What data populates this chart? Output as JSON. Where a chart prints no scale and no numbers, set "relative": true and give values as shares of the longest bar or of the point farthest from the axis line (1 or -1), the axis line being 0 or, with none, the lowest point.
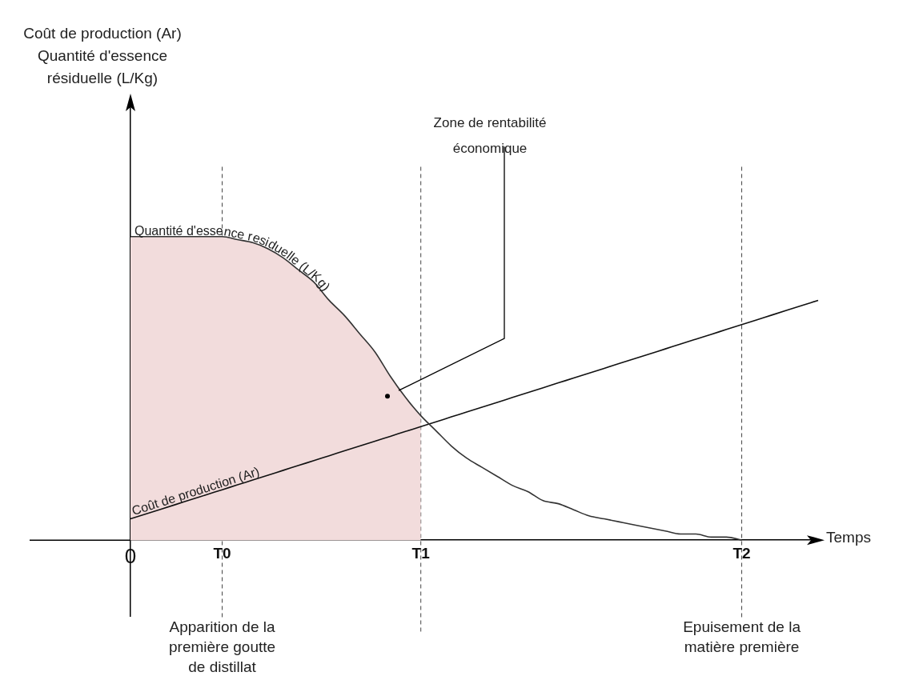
{
  "chart_data": {
    "type": "line",
    "relative": true,
    "xlabel": "Temps",
    "categories": [
      "0",
      null,
      null,
      null,
      null,
      null,
      "T0",
      null,
      null,
      null,
      null,
      null,
      null,
      null,
      null,
      null,
      null,
      null,
      null,
      "T1",
      null,
      null,
      null,
      null,
      null,
      null,
      null,
      null,
      null,
      null,
      null,
      null,
      null,
      null,
      null,
      null,
      null,
      null,
      null,
      null,
      "T2",
      null,
      null,
      null,
      null,
      null
    ],
    "tick_labels": "x",
    "legend": false,
    "grid": false,
    "marker": "none",
    "line_style": "solid",
    "series": [
      {
        "type": "area",
        "color": "#f2dcdc",
        "values": [
          1,
          1,
          1,
          1,
          1,
          1,
          1,
          0.99,
          0.98,
          0.96,
          0.93,
          0.89,
          0.85,
          0.79,
          0.74,
          0.68,
          0.62,
          0.54,
          0.47,
          0.41,
          null,
          null,
          null,
          null,
          null,
          null,
          null,
          null,
          null,
          null,
          null,
          null,
          null,
          null,
          null,
          null,
          null,
          null,
          null,
          null,
          null,
          null,
          null,
          null,
          null,
          null
        ]
      },
      {
        "name": "Quantité d'essence residuelle (L/Kg)",
        "color": "#333333",
        "values": [
          1,
          1,
          1,
          1,
          1,
          1,
          1,
          0.99,
          0.98,
          0.96,
          0.93,
          0.89,
          0.85,
          0.79,
          0.74,
          0.68,
          0.62,
          0.54,
          0.47,
          0.41,
          0.36,
          0.31,
          0.27,
          0.24,
          0.21,
          0.18,
          0.16,
          0.13,
          0.12,
          0.1,
          0.08,
          0.07,
          0.06,
          0.05,
          0.04,
          0.03,
          0.02,
          0.02,
          0.01,
          0.01,
          0,
          null,
          null,
          null,
          null,
          null
        ]
      },
      {
        "name": "Coût de production (Ar)",
        "color": "#111111",
        "values": [
          0.07,
          0.086,
          0.102,
          0.118,
          0.134,
          0.15,
          0.166,
          0.182,
          0.198,
          0.214,
          0.23,
          0.246,
          0.262,
          0.278,
          0.294,
          0.31,
          0.326,
          0.342,
          0.358,
          0.374,
          0.39,
          0.406,
          0.422,
          0.438,
          0.454,
          0.47,
          0.486,
          0.502,
          0.518,
          0.534,
          0.55,
          0.566,
          0.582,
          0.598,
          0.614,
          0.63,
          0.646,
          0.662,
          0.678,
          0.694,
          0.71,
          0.726,
          0.742,
          0.758,
          0.774,
          0.79
        ]
      }
    ],
    "ref_lines": [
      {
        "axis": "x",
        "value": "T0",
        "label": "Apparition de la première goutte de distillat",
        "line_style": "dashed"
      },
      {
        "axis": "x",
        "value": "T1",
        "line_style": "dashed"
      },
      {
        "axis": "x",
        "value": "T2",
        "label": "Epuisement de la matière première",
        "line_style": "dashed"
      }
    ],
    "annotations": [
      "Zone de rentabilité économique",
      "Coût de production (Ar) Quantité d'essence résiduelle (L/Kg)"
    ]
  }
}
